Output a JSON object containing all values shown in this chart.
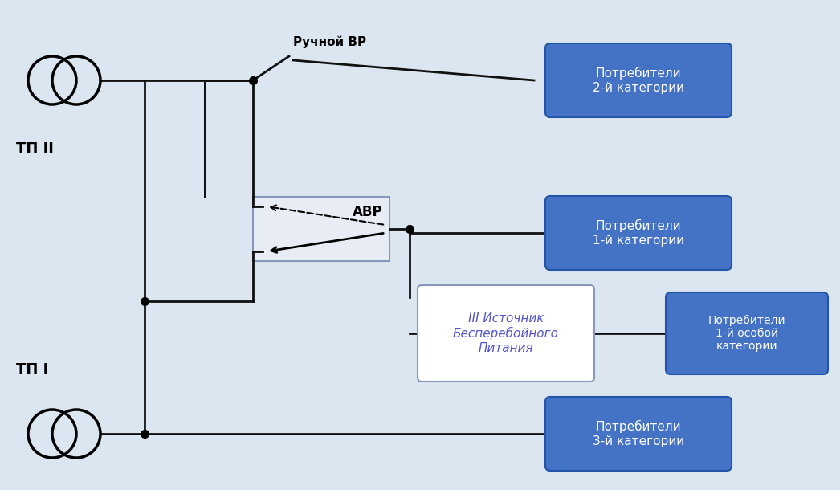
{
  "bg_color": "#dce6f1",
  "box_color_blue": "#4472c4",
  "box_border_blue": "#2255aa",
  "box_color_ups_bg": "#ffffff",
  "box_border_ups": "#8898bb",
  "avr_box_bg": "#e8edf5",
  "avr_box_border": "#8898bb",
  "text_white": "#ffffff",
  "text_black": "#000000",
  "text_blue_purple": "#5555cc",
  "text_avr_black": "#000000",
  "tp2_label": "ТП II",
  "tp1_label": "ТП I",
  "manual_vr_label": "Ручной ВР",
  "avr_label": "АВР",
  "consumer_2": "Потребители\n2-й категории",
  "consumer_1": "Потребители\n1-й категории",
  "consumer_1_special": "Потребители\n1-й особой\nкатегории",
  "consumer_3": "Потребители\n3-й категории",
  "ups_label": "III Источник\nБесперебойного\nПитания",
  "line_color": "#111111",
  "line_width": 2.0,
  "dot_size": 7
}
